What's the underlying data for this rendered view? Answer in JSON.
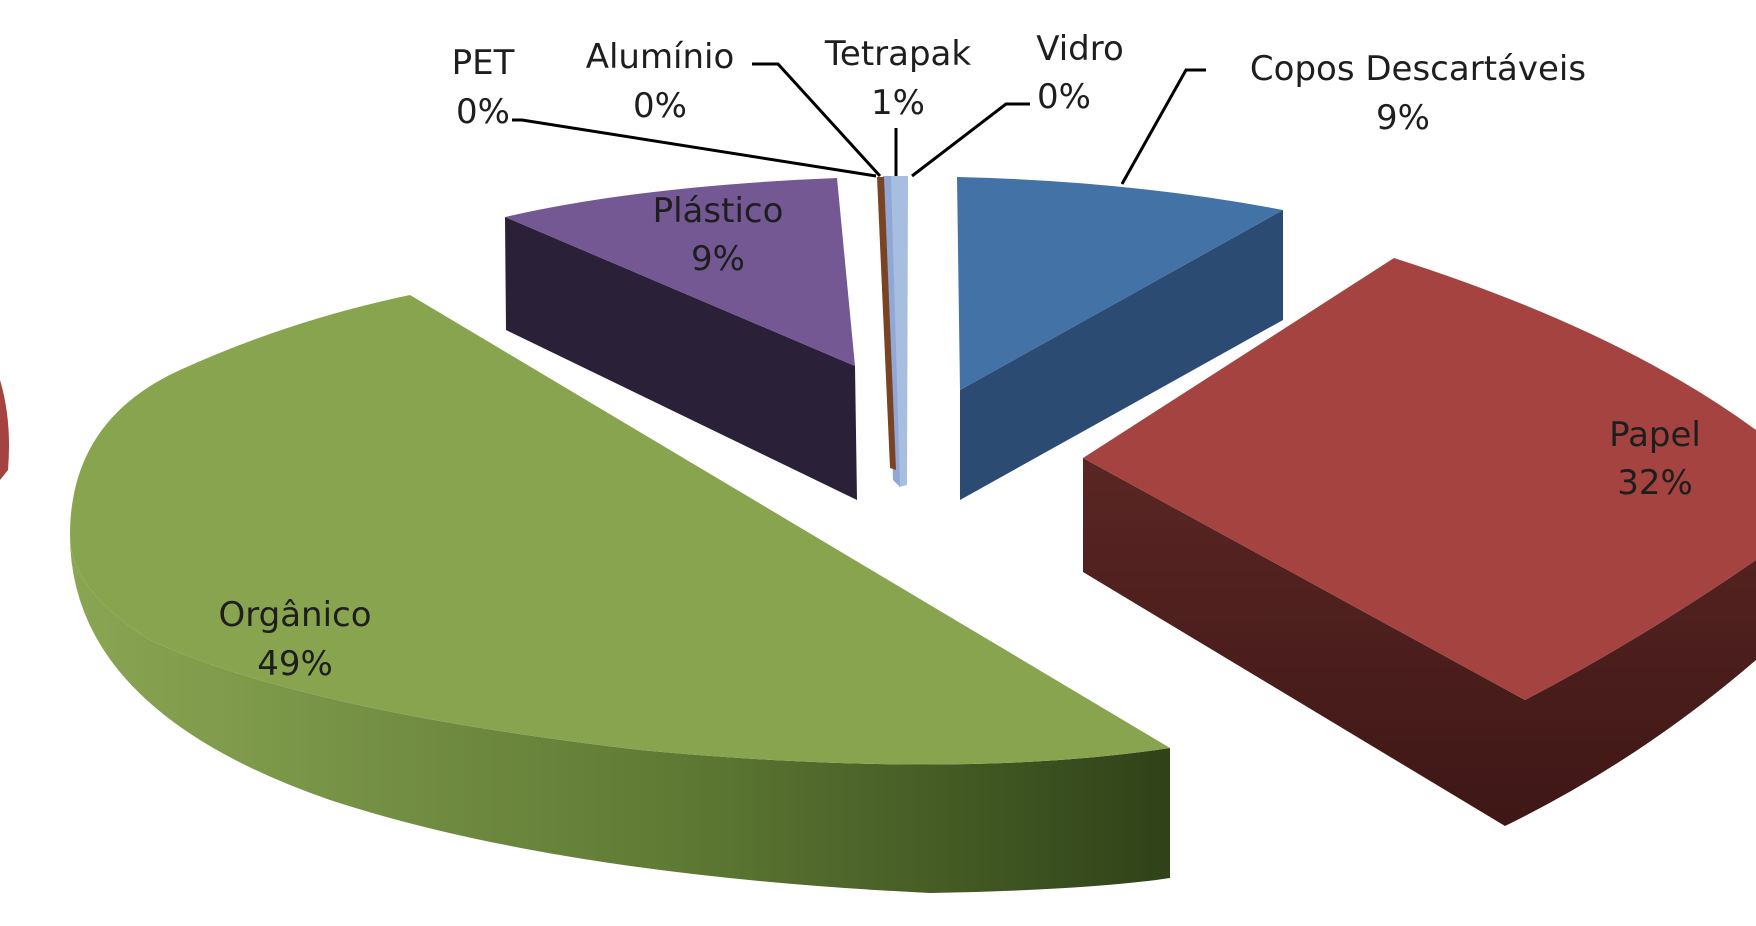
{
  "chart_data": {
    "type": "pie",
    "title": "",
    "style": "3d-exploded",
    "slices": [
      {
        "label": "Copos Descartáveis",
        "value": 9,
        "value_label": "9%",
        "color": "#4372a7"
      },
      {
        "label": "Papel",
        "value": 32,
        "value_label": "32%",
        "color": "#a4433f"
      },
      {
        "label": "Orgânico",
        "value": 49,
        "value_label": "49%",
        "color": "#89a44f"
      },
      {
        "label": "Plástico",
        "value": 9,
        "value_label": "9%",
        "color": "#735893"
      },
      {
        "label": "PET",
        "value": 0,
        "value_label": "0%",
        "color": "#3c8ea6"
      },
      {
        "label": "Alumínio",
        "value": 0,
        "value_label": "0%",
        "color": "#d9812b"
      },
      {
        "label": "Tetrapak",
        "value": 1,
        "value_label": "1%",
        "color": "#8fa8d6"
      },
      {
        "label": "Vidro",
        "value": 0,
        "value_label": "0%",
        "color": "#d6928f"
      }
    ]
  }
}
